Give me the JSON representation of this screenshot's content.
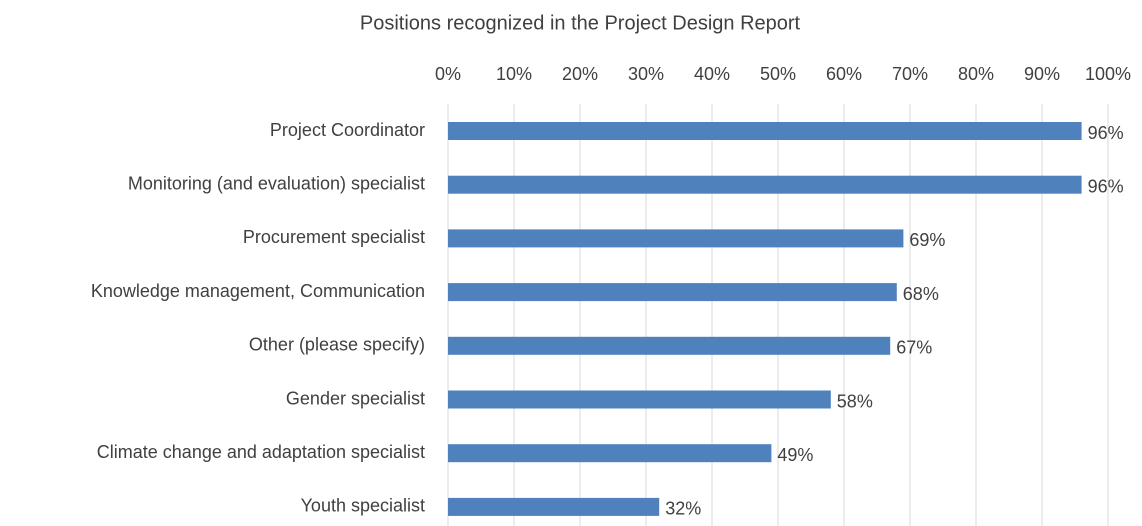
{
  "chart_data": {
    "type": "hbar",
    "title": "Positions recognized in the Project Design Report",
    "categories": [
      "Project Coordinator",
      "Monitoring (and evaluation) specialist",
      "Procurement specialist",
      "Knowledge management, Communication",
      "Other (please specify)",
      "Gender specialist",
      "Climate change and adaptation specialist",
      "Youth specialist"
    ],
    "values": [
      96,
      96,
      69,
      68,
      67,
      58,
      49,
      32
    ],
    "value_labels": [
      "96%",
      "96%",
      "69%",
      "68%",
      "67%",
      "58%",
      "49%",
      "32%"
    ],
    "color": "#4f81bd",
    "xlim": [
      0,
      100
    ],
    "xticks": [
      {
        "value": 0,
        "label": "0%"
      },
      {
        "value": 10,
        "label": "10%"
      },
      {
        "value": 20,
        "label": "20%"
      },
      {
        "value": 30,
        "label": "30%"
      },
      {
        "value": 40,
        "label": "40%"
      },
      {
        "value": 50,
        "label": "50%"
      },
      {
        "value": 60,
        "label": "60%"
      },
      {
        "value": 70,
        "label": "70%"
      },
      {
        "value": 80,
        "label": "80%"
      },
      {
        "value": 90,
        "label": "90%"
      },
      {
        "value": 100,
        "label": "100%"
      }
    ],
    "grid": true
  }
}
